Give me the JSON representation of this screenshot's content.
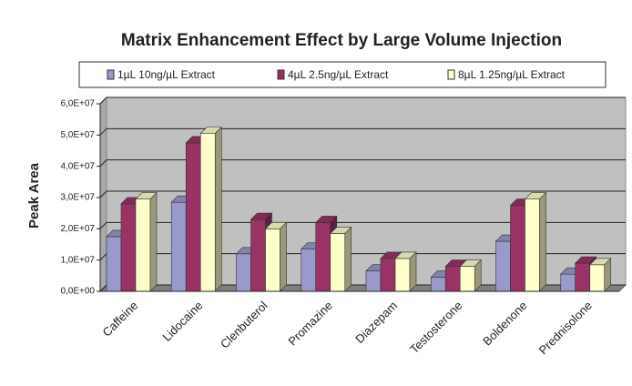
{
  "chart_data": {
    "type": "bar3d",
    "title": "Matrix Enhancement Effect by Large Volume Injection",
    "y_label": "Peak Area",
    "categories": [
      "Caffeine",
      "Lidocaine",
      "Clenbuterol",
      "Promazine",
      "Diazepam",
      "Testosterone",
      "Boldenone",
      "Prednisolone"
    ],
    "series": [
      {
        "name": "1µL 10ng/µL Extract",
        "color": "#9999cc",
        "values": [
          17500000,
          28500000,
          12000000,
          13500000,
          6500000,
          4500000,
          16000000,
          5500000
        ]
      },
      {
        "name": "4µL 2.5ng/µL Extract",
        "color": "#993366",
        "values": [
          28000000,
          47500000,
          23000000,
          22000000,
          10500000,
          8000000,
          27500000,
          9000000
        ]
      },
      {
        "name": "8µL 1.25ng/µL Extract",
        "color": "#ffffcc",
        "values": [
          29500000,
          50500000,
          20000000,
          18500000,
          10500000,
          8000000,
          29500000,
          8500000
        ]
      }
    ],
    "ylim": [
      0,
      60000000
    ],
    "yticks": [
      {
        "value": 0,
        "label": "0,0E+00"
      },
      {
        "value": 10000000,
        "label": "1,0E+07"
      },
      {
        "value": 20000000,
        "label": "2,0E+07"
      },
      {
        "value": 30000000,
        "label": "3,0E+07"
      },
      {
        "value": 40000000,
        "label": "4,0E+07"
      },
      {
        "value": 50000000,
        "label": "5,0E+07"
      },
      {
        "value": 60000000,
        "label": "6,0E+07"
      }
    ],
    "grid": true
  }
}
